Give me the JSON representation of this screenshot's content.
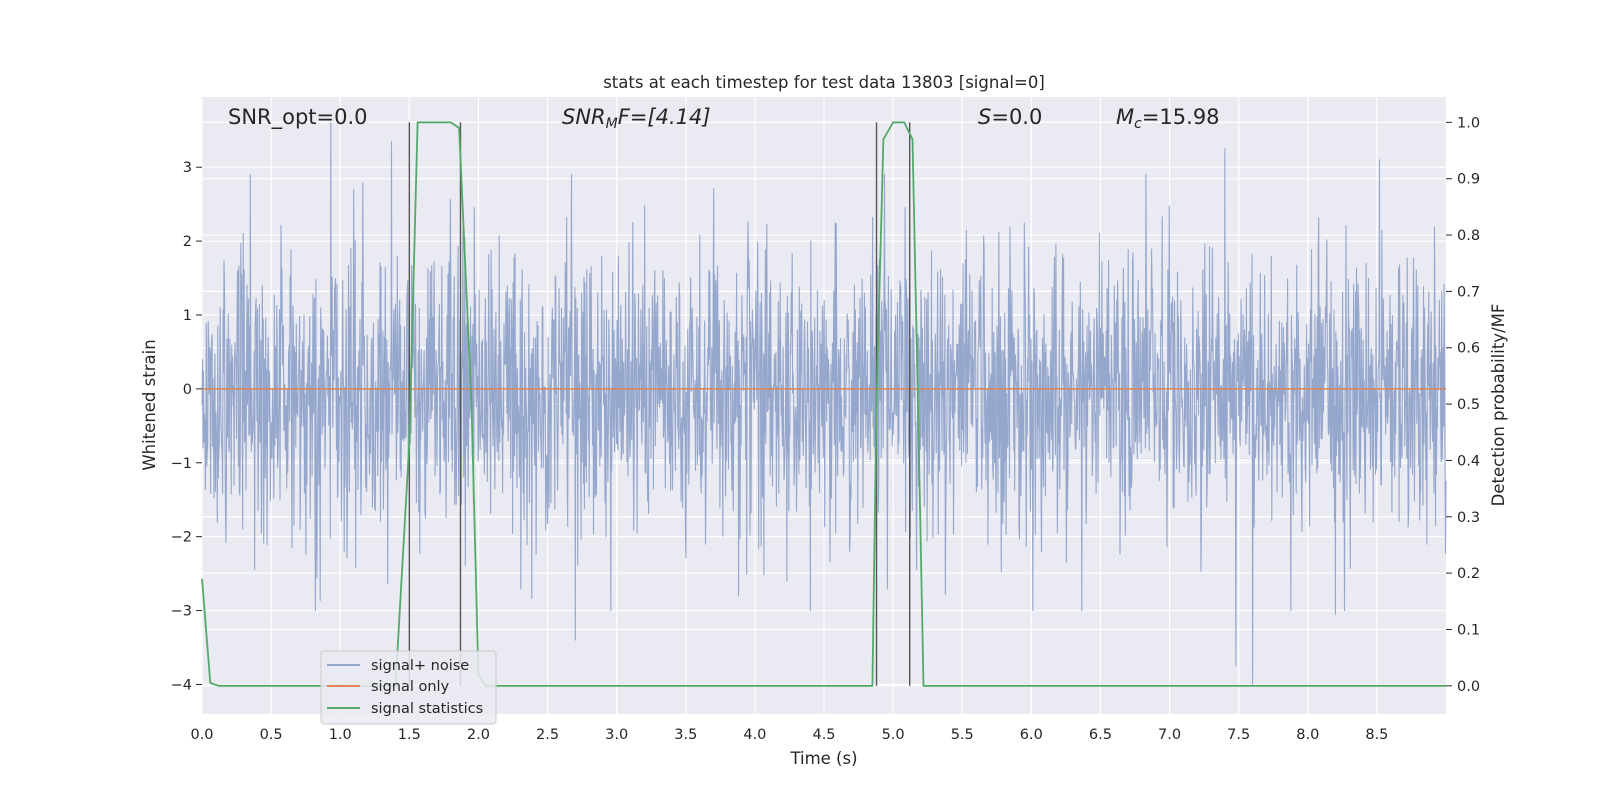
{
  "chart_data": {
    "type": "line",
    "title": "stats at each timestep for test data 13803 [signal=0]",
    "xlabel": "Time (s)",
    "ylabel_left": "Whitened strain",
    "ylabel_right": "Detection probability/MF",
    "xlim": [
      0,
      9.0
    ],
    "ylim_left": [
      -4.4,
      3.95
    ],
    "ylim_right": [
      -0.05,
      1.045
    ],
    "x_ticks": [
      "0.0",
      "0.5",
      "1.0",
      "1.5",
      "2.0",
      "2.5",
      "3.0",
      "3.5",
      "4.0",
      "4.5",
      "5.0",
      "5.5",
      "6.0",
      "6.5",
      "7.0",
      "7.5",
      "8.0",
      "8.5"
    ],
    "y_ticks_left": [
      "3",
      "2",
      "1",
      "0",
      "−1",
      "−2",
      "−3",
      "−4"
    ],
    "y_ticks_right": [
      "1.0",
      "0.9",
      "0.8",
      "0.7",
      "0.6",
      "0.5",
      "0.4",
      "0.3",
      "0.2",
      "0.1",
      "0.0"
    ],
    "grid": true,
    "legend_position": "lower-left",
    "annotations": {
      "snr_opt": "SNR_opt=0.0",
      "snr_mf_base": "SNR",
      "snr_mf_sub": "M",
      "snr_mf_rest": "F=[4.14]",
      "s_var": "S",
      "s_rest": "=0.0",
      "mc_base": "M",
      "mc_sub": "c",
      "mc_rest": "=15.98"
    },
    "series": [
      {
        "name": "signal+ noise",
        "color": "#95a7cc",
        "axis": "left",
        "description_values": "dense whitened noise, typical envelope about ±2, extremes from -4.0 to 3.6",
        "peaks": [
          {
            "x": 0.93,
            "y": 3.6
          },
          {
            "x": 1.37,
            "y": 3.35
          },
          {
            "x": 7.4,
            "y": 3.25
          },
          {
            "x": 8.52,
            "y": 3.1
          },
          {
            "x": 7.6,
            "y": -4.0
          },
          {
            "x": 7.48,
            "y": -3.75
          },
          {
            "x": 2.7,
            "y": -3.4
          },
          {
            "x": 8.2,
            "y": -3.05
          },
          {
            "x": 0.82,
            "y": -3.0
          }
        ]
      },
      {
        "name": "signal only",
        "color": "#dd8452",
        "axis": "left",
        "x": [
          0,
          9.0
        ],
        "y": [
          0,
          0
        ]
      },
      {
        "name": "signal statistics",
        "color": "#55a868",
        "axis": "right",
        "x": [
          0.0,
          0.06,
          0.12,
          0.3,
          1.4,
          1.5,
          1.56,
          1.8,
          1.86,
          1.95,
          2.0,
          2.05,
          4.85,
          4.88,
          4.93,
          5.0,
          5.08,
          5.14,
          5.18,
          5.22,
          9.0
        ],
        "y": [
          0.19,
          0.005,
          0.0,
          0.0,
          0.0,
          0.43,
          1.0,
          1.0,
          0.99,
          0.5,
          0.02,
          0.0,
          0.0,
          0.5,
          0.97,
          1.0,
          1.0,
          0.97,
          0.5,
          0.0,
          0.0
        ]
      }
    ],
    "vertical_markers": [
      1.5,
      1.87,
      4.88,
      5.12
    ]
  }
}
